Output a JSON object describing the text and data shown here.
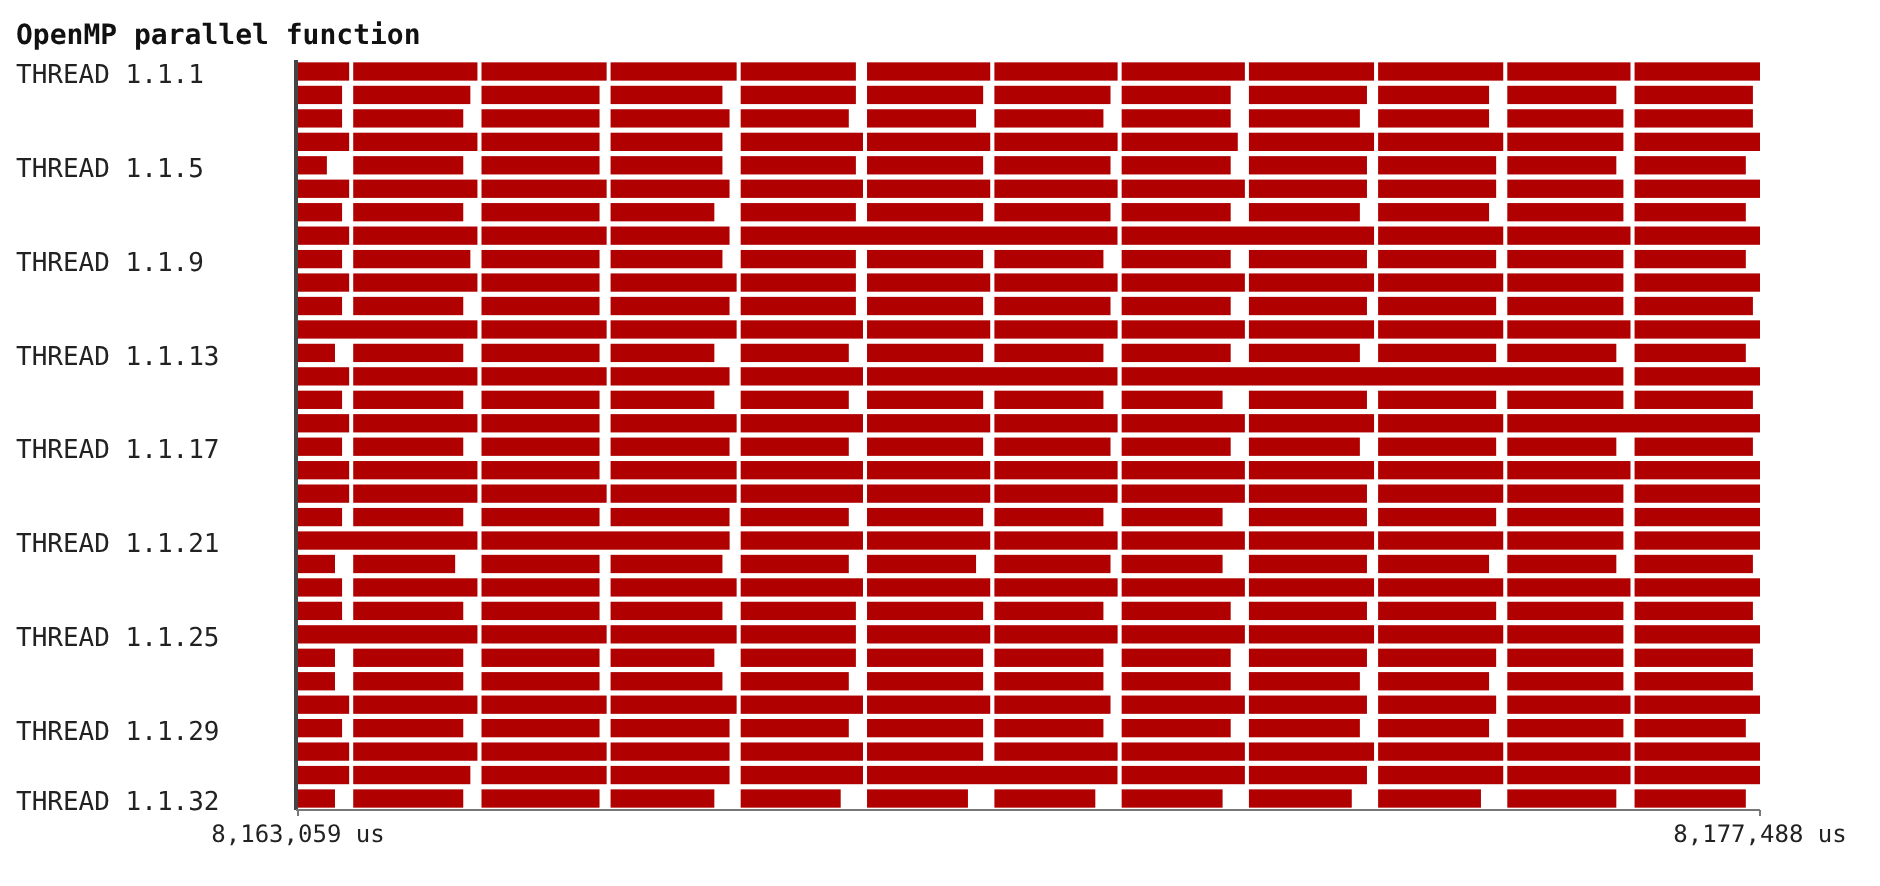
{
  "chart_data": {
    "type": "bar",
    "orientation": "horizontal",
    "title": "OpenMP parallel function",
    "categories": [
      "THREAD 1.1.1",
      null,
      null,
      null,
      "THREAD 1.1.5",
      null,
      null,
      null,
      "THREAD 1.1.9",
      null,
      null,
      null,
      "THREAD 1.1.13",
      null,
      null,
      null,
      "THREAD 1.1.17",
      null,
      null,
      null,
      "THREAD 1.1.21",
      null,
      null,
      null,
      "THREAD 1.1.25",
      null,
      null,
      null,
      "THREAD 1.1.29",
      null,
      null,
      "THREAD 1.1.32"
    ],
    "xlim": [
      8163059,
      8177488
    ],
    "xticks": [
      {
        "value": 8163059,
        "label": "8,163,059 us"
      },
      {
        "value": 8177488,
        "label": "8,177,488 us"
      }
    ],
    "series": [
      {
        "color": "#b00000",
        "base": [
          8163059,
          8163059,
          8163059,
          8163059,
          8163059,
          8163059,
          8163059,
          8163059,
          8163059,
          8163059,
          8163059,
          8163059,
          8163059,
          8163059,
          8163059,
          8163059,
          8163059,
          8163059,
          8163059,
          8163059,
          8163059,
          8163059,
          8163059,
          8163059,
          8163059,
          8163059,
          8163059,
          8163059,
          8163059,
          8163059,
          8163059,
          8163059
        ],
        "values": [
          505,
          435,
          435,
          505,
          285,
          505,
          435,
          505,
          435,
          505,
          435,
          1771,
          365,
          505,
          435,
          505,
          435,
          505,
          505,
          435,
          1771,
          365,
          435,
          435,
          1771,
          365,
          365,
          505,
          435,
          505,
          505,
          365
        ]
      },
      {
        "color": "#b00000",
        "base": [
          8163604,
          8163604,
          8163604,
          8163604,
          8163604,
          8163604,
          8163604,
          8163604,
          8163604,
          8163604,
          8163604,
          null,
          8163604,
          8163604,
          8163604,
          8163604,
          8163604,
          8163604,
          8163604,
          8163604,
          null,
          8163604,
          8163604,
          8163604,
          null,
          8163604,
          8163604,
          8163604,
          8163604,
          8163604,
          8163604,
          8163604
        ],
        "values": [
          1226,
          1156,
          1086,
          1226,
          1086,
          1226,
          1086,
          1226,
          1156,
          1226,
          1086,
          null,
          1086,
          1226,
          1086,
          1226,
          1086,
          1226,
          1226,
          1086,
          null,
          1006,
          1226,
          1086,
          null,
          1086,
          1086,
          1226,
          1086,
          1226,
          1156,
          1086
        ]
      },
      {
        "color": "#b00000",
        "base": [
          8164870,
          8164870,
          8164870,
          8164870,
          8164870,
          8164870,
          8164870,
          8164870,
          8164870,
          8164870,
          8164870,
          8164870,
          8164870,
          8164870,
          8164870,
          8164870,
          8164870,
          8164870,
          8164870,
          8164870,
          8164870,
          8164870,
          8164870,
          8164870,
          8164870,
          8164870,
          8164870,
          8164870,
          8164870,
          8164870,
          8164870,
          8164870
        ],
        "values": [
          1235,
          1165,
          1165,
          1165,
          1165,
          1235,
          1165,
          1235,
          1165,
          1165,
          1165,
          1235,
          1165,
          1235,
          1165,
          1165,
          1165,
          1165,
          1235,
          1165,
          2449,
          1165,
          1165,
          1165,
          1235,
          1165,
          1165,
          1235,
          1165,
          1235,
          1235,
          1165
        ]
      },
      {
        "color": "#b00000",
        "base": [
          8166144,
          8166144,
          8166144,
          8166144,
          8166144,
          8166144,
          8166144,
          8166144,
          8166144,
          8166144,
          8166144,
          8166144,
          8166144,
          8166144,
          8166144,
          8166144,
          8166144,
          8166144,
          8166144,
          8166144,
          null,
          8166144,
          8166144,
          8166144,
          8166144,
          8166144,
          8166144,
          8166144,
          8166144,
          8166144,
          8166144,
          8166144
        ],
        "values": [
          1244,
          1104,
          1174,
          1104,
          1104,
          1174,
          1024,
          1174,
          1104,
          1244,
          1174,
          1244,
          1024,
          1174,
          1024,
          1244,
          1174,
          1244,
          1244,
          1174,
          null,
          1104,
          1244,
          1104,
          1244,
          1024,
          1104,
          1244,
          1174,
          1174,
          1174,
          1024
        ]
      },
      {
        "color": "#b00000",
        "base": [
          8167428,
          8167428,
          8167428,
          8167428,
          8167428,
          8167428,
          8167428,
          8167428,
          8167428,
          8167428,
          8167428,
          8167428,
          8167428,
          8167428,
          8167428,
          8167428,
          8167428,
          8167428,
          8167428,
          8167428,
          8167428,
          8167428,
          8167428,
          8167428,
          8167428,
          8167428,
          8167428,
          8167428,
          8167428,
          8167428,
          8167428,
          8167428
        ],
        "values": [
          1137,
          1137,
          1067,
          1207,
          1137,
          1207,
          1137,
          3719,
          1137,
          1137,
          1137,
          1207,
          1067,
          1207,
          1067,
          1207,
          1067,
          1207,
          1207,
          1067,
          1207,
          1067,
          1207,
          1137,
          1137,
          1137,
          1067,
          1207,
          1067,
          1207,
          1207,
          987
        ]
      },
      {
        "color": "#b00000",
        "base": [
          8168675,
          8168675,
          8168675,
          8168675,
          8168675,
          8168675,
          8168675,
          null,
          8168675,
          8168675,
          8168675,
          8168675,
          8168675,
          8168675,
          8168675,
          8168675,
          8168675,
          8168675,
          8168675,
          8168675,
          8168675,
          8168675,
          8168675,
          8168675,
          8168675,
          8168675,
          8168675,
          8168675,
          8168675,
          8168675,
          8168675,
          8168675
        ],
        "values": [
          1216,
          1146,
          1076,
          1216,
          1146,
          1216,
          1146,
          null,
          1146,
          1216,
          1146,
          1216,
          1146,
          2472,
          1146,
          1216,
          1146,
          1216,
          1216,
          1146,
          1216,
          1076,
          1216,
          1146,
          1216,
          1146,
          1146,
          1216,
          1146,
          1146,
          2472,
          996
        ]
      },
      {
        "color": "#b00000",
        "base": [
          8169932,
          8169932,
          8169932,
          8169932,
          8169932,
          8169932,
          8169932,
          null,
          8169932,
          8169932,
          8169932,
          8169932,
          8169932,
          null,
          8169932,
          8169932,
          8169932,
          8169932,
          8169932,
          8169932,
          8169932,
          8169932,
          8169932,
          8169932,
          8169932,
          8169932,
          8169932,
          8169932,
          8169932,
          8169932,
          null,
          8169932
        ],
        "values": [
          1216,
          1146,
          1076,
          1216,
          1146,
          1216,
          1146,
          null,
          1076,
          1216,
          1146,
          1216,
          1076,
          null,
          1076,
          1216,
          1146,
          1216,
          1216,
          1076,
          1216,
          1146,
          1216,
          1076,
          1216,
          1076,
          1076,
          1146,
          1076,
          1216,
          null,
          996
        ]
      },
      {
        "color": "#b00000",
        "base": [
          8171188,
          8171188,
          8171188,
          8171188,
          8171188,
          8171188,
          8171188,
          8171188,
          8171188,
          8171188,
          8171188,
          8171188,
          8171188,
          8171188,
          8171188,
          8171188,
          8171188,
          8171188,
          8171188,
          8171188,
          8171188,
          8171188,
          8171188,
          8171188,
          8171188,
          8171188,
          8171188,
          8171188,
          8171188,
          8171188,
          8171188,
          8171188
        ],
        "values": [
          1216,
          1076,
          1076,
          1146,
          1076,
          1216,
          1076,
          2491,
          1076,
          1216,
          1076,
          1216,
          1076,
          4952,
          996,
          1216,
          1076,
          1216,
          1216,
          996,
          1216,
          996,
          1216,
          1076,
          1216,
          1076,
          1076,
          1216,
          1076,
          1216,
          1216,
          996
        ]
      },
      {
        "color": "#b00000",
        "base": [
          8172444,
          8172444,
          8172444,
          8172444,
          8172444,
          8172444,
          8172444,
          null,
          8172444,
          8172444,
          8172444,
          8172444,
          8172444,
          null,
          8172444,
          8172444,
          8172444,
          8172444,
          8172444,
          8172444,
          8172444,
          8172444,
          8172444,
          8172444,
          8172444,
          8172444,
          8172444,
          8172444,
          8172444,
          8172444,
          8172444,
          8172444
        ],
        "values": [
          1235,
          1165,
          1095,
          1235,
          1165,
          1165,
          1095,
          null,
          1165,
          1235,
          1165,
          1235,
          1095,
          null,
          1165,
          1235,
          1095,
          1235,
          1165,
          1165,
          1235,
          1165,
          1235,
          1165,
          1235,
          1165,
          1095,
          1165,
          1095,
          1235,
          1165,
          1015
        ]
      },
      {
        "color": "#b00000",
        "base": [
          8173719,
          8173719,
          8173719,
          8173719,
          8173719,
          8173719,
          8173719,
          8173719,
          8173719,
          8173719,
          8173719,
          8173719,
          8173719,
          null,
          8173719,
          8173719,
          8173719,
          8173719,
          8173719,
          8173719,
          8173719,
          8173719,
          8173719,
          8173719,
          8173719,
          8173719,
          8173719,
          8173719,
          8173719,
          8173719,
          8173719,
          8173719
        ],
        "values": [
          1235,
          1095,
          1095,
          1235,
          1165,
          1165,
          1095,
          1235,
          1165,
          1235,
          1165,
          1235,
          1165,
          null,
          1165,
          1235,
          1165,
          1235,
          1235,
          1165,
          1235,
          1095,
          1235,
          1165,
          1235,
          1165,
          1095,
          1165,
          1095,
          1235,
          1235,
          1015
        ]
      },
      {
        "color": "#b00000",
        "base": [
          8174994,
          8174994,
          8174994,
          8174994,
          8174994,
          8174994,
          8174994,
          8174994,
          8174994,
          8174994,
          8174994,
          8174994,
          8174994,
          null,
          8174994,
          8174994,
          8174994,
          8174994,
          8174994,
          8174994,
          8174994,
          8174994,
          8174994,
          8174994,
          8174994,
          8174994,
          8174994,
          8174994,
          8174994,
          8174994,
          8174994,
          8174994
        ],
        "values": [
          1216,
          1076,
          1146,
          1146,
          1076,
          1146,
          1146,
          1216,
          1146,
          1146,
          1146,
          1216,
          1076,
          null,
          1146,
          2494,
          1076,
          1216,
          1146,
          1146,
          1146,
          1076,
          1216,
          1146,
          1146,
          1146,
          1146,
          1216,
          1146,
          1216,
          1216,
          1076
        ]
      },
      {
        "color": "#b00000",
        "base": [
          8176250,
          8176250,
          8176250,
          8176250,
          8176250,
          8176250,
          8176250,
          8176250,
          8176250,
          8176250,
          8176250,
          8176250,
          8176250,
          8176250,
          8176250,
          null,
          8176250,
          8176250,
          8176250,
          8176250,
          8176250,
          8176250,
          8176250,
          8176250,
          8176250,
          8176250,
          8176250,
          8176250,
          8176250,
          8176250,
          8176250,
          8176250
        ],
        "values": [
          1238,
          1168,
          1168,
          1238,
          1098,
          1238,
          1098,
          1238,
          1098,
          1238,
          1168,
          1238,
          1098,
          1238,
          1168,
          null,
          1168,
          1238,
          1238,
          1238,
          1238,
          1168,
          1238,
          1168,
          1238,
          1168,
          1168,
          1238,
          1098,
          1238,
          1238,
          1098
        ]
      }
    ]
  }
}
